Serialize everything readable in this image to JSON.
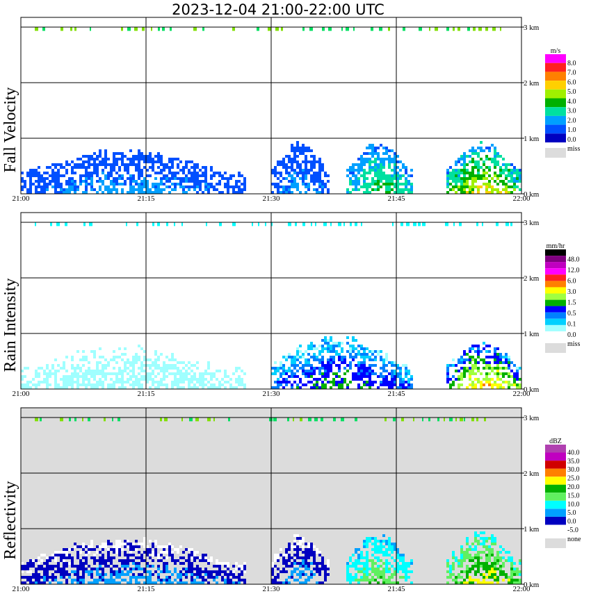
{
  "title": "2023-12-04   21:00-22:00 UTC",
  "time_ticks": [
    "21:00",
    "21:15",
    "21:30",
    "21:45",
    "22:00"
  ],
  "height_ticks": [
    "0 km",
    "1 km",
    "2 km",
    "3 km"
  ],
  "colors": {
    "missing": "#dcdcdc",
    "grid": "#000000",
    "panel_frame": "#000000"
  },
  "chart_data": [
    {
      "type": "heatmap",
      "ylabel": "Fall Velocity",
      "unit": "m/s",
      "xlim": [
        "21:00",
        "22:00"
      ],
      "ylim_km": [
        0,
        3.2
      ],
      "grid": true,
      "legend_placement": "right",
      "missing_background": false,
      "legend": {
        "labels": [
          "8.0",
          "7.0",
          "6.0",
          "5.0",
          "4.0",
          "3.0",
          "2.0",
          "1.0",
          "0.0"
        ],
        "colors": [
          "#ff00ff",
          "#ff2020",
          "#ff8000",
          "#ffd000",
          "#a0f000",
          "#00b000",
          "#00e0a0",
          "#00a0ff",
          "#0050ff",
          "#0000c0"
        ],
        "missing_label": "miss"
      },
      "echo_regions": [
        {
          "t_start": "21:00",
          "t_end": "21:27",
          "base_km": 0.0,
          "top_km": 0.8,
          "values_range": [
            0.5,
            2.5
          ]
        },
        {
          "t_start": "21:30",
          "t_end": "21:37",
          "base_km": 0.0,
          "top_km": 0.95,
          "values_range": [
            0.5,
            2.5
          ]
        },
        {
          "t_start": "21:39",
          "t_end": "21:47",
          "base_km": 0.0,
          "top_km": 0.95,
          "values_range": [
            1.0,
            5.0
          ]
        },
        {
          "t_start": "21:51",
          "t_end": "22:00",
          "base_km": 0.0,
          "top_km": 0.95,
          "values_range": [
            1.0,
            8.0
          ]
        }
      ],
      "cloud_layer_km": 2.97
    },
    {
      "type": "heatmap",
      "ylabel": "Rain Intensity",
      "unit": "mm/hr",
      "xlim": [
        "21:00",
        "22:00"
      ],
      "ylim_km": [
        0,
        3.2
      ],
      "grid": true,
      "legend_placement": "right",
      "missing_background": false,
      "legend": {
        "labels": [
          "48.0",
          "12.0",
          "6.0",
          "3.0",
          "1.5",
          "0.5",
          "0.1",
          "0.0"
        ],
        "colors": [
          "#000000",
          "#800080",
          "#c000c0",
          "#ff00ff",
          "#ff2020",
          "#ff8000",
          "#ffff00",
          "#a0ff40",
          "#00b000",
          "#0000ff",
          "#0080ff",
          "#00d0ff",
          "#a0ffff",
          "#ffffff"
        ],
        "missing_label": "miss"
      },
      "echo_regions": [
        {
          "t_start": "21:00",
          "t_end": "21:27",
          "base_km": 0.0,
          "top_km": 0.8,
          "values_range": [
            0.0,
            0.1
          ]
        },
        {
          "t_start": "21:30",
          "t_end": "21:47",
          "base_km": 0.0,
          "top_km": 0.95,
          "values_range": [
            0.0,
            3.0
          ]
        },
        {
          "t_start": "21:51",
          "t_end": "22:00",
          "base_km": 0.0,
          "top_km": 0.9,
          "values_range": [
            0.0,
            6.0
          ]
        }
      ],
      "cloud_layer_km": 2.97
    },
    {
      "type": "heatmap",
      "ylabel": "Reflectivity",
      "unit": "dBZ",
      "xlim": [
        "21:00",
        "22:00"
      ],
      "ylim_km": [
        0,
        3.2
      ],
      "grid": true,
      "legend_placement": "right",
      "missing_background": true,
      "legend": {
        "labels": [
          "40.0",
          "35.0",
          "30.0",
          "25.0",
          "20.0",
          "15.0",
          "10.0",
          "5.0",
          "0.0",
          "-5.0"
        ],
        "colors": [
          "#b040b0",
          "#c000c0",
          "#d00000",
          "#ff8000",
          "#ffff00",
          "#00b000",
          "#60f060",
          "#00ffff",
          "#00a0ff",
          "#0000c0",
          "#ffffff"
        ],
        "missing_label": "none"
      },
      "echo_regions": [
        {
          "t_start": "21:00",
          "t_end": "21:27",
          "base_km": 0.0,
          "top_km": 0.85,
          "values_range": [
            -5.0,
            5.0
          ]
        },
        {
          "t_start": "21:30",
          "t_end": "21:37",
          "base_km": 0.0,
          "top_km": 0.95,
          "values_range": [
            -5.0,
            5.0
          ]
        },
        {
          "t_start": "21:39",
          "t_end": "21:47",
          "base_km": 0.0,
          "top_km": 0.95,
          "values_range": [
            0.0,
            20.0
          ]
        },
        {
          "t_start": "21:51",
          "t_end": "22:00",
          "base_km": 0.0,
          "top_km": 0.95,
          "values_range": [
            5.0,
            25.0
          ]
        }
      ],
      "cloud_layer_km": 2.97
    }
  ]
}
